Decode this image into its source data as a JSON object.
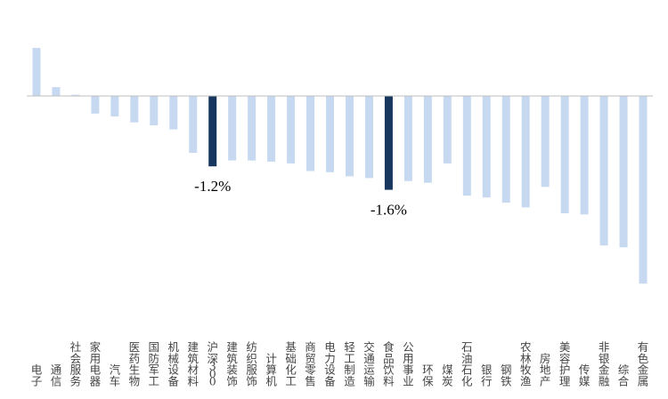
{
  "chart_data": {
    "type": "bar",
    "title": "",
    "xlabel": "",
    "ylabel": "",
    "ylim": [
      -3.2,
      0.9
    ],
    "grid": false,
    "legend": "none",
    "colors": {
      "default": "#c6d9f0",
      "highlight": "#17375e",
      "axis": "#bfbfbf"
    },
    "categories": [
      "电子",
      "通信",
      "社会服务",
      "家用电器",
      "汽车",
      "医药生物",
      "国防军工",
      "机械设备",
      "建筑材料",
      "沪深300",
      "建筑装饰",
      "纺织服饰",
      "计算机",
      "基础化工",
      "商贸零售",
      "电力设备",
      "轻工制造",
      "交通运输",
      "食品饮料",
      "公用事业",
      "环保",
      "煤炭",
      "石油石化",
      "银行",
      "钢铁",
      "农林牧渔",
      "房地产",
      "美容护理",
      "传媒",
      "非银金融",
      "综合",
      "有色金属"
    ],
    "values": [
      0.82,
      0.15,
      0.02,
      -0.3,
      -0.35,
      -0.45,
      -0.5,
      -0.57,
      -0.97,
      -1.2,
      -1.1,
      -1.1,
      -1.12,
      -1.15,
      -1.28,
      -1.3,
      -1.37,
      -1.4,
      -1.6,
      -1.45,
      -1.48,
      -1.15,
      -1.7,
      -1.73,
      -1.82,
      -1.9,
      -1.55,
      -2.0,
      -2.02,
      -2.55,
      -2.58,
      -3.2
    ],
    "highlight": [
      "沪深300",
      "食品饮料"
    ],
    "annotations": [
      {
        "category": "沪深300",
        "text": "-1.2%"
      },
      {
        "category": "食品饮料",
        "text": "-1.6%"
      }
    ]
  }
}
